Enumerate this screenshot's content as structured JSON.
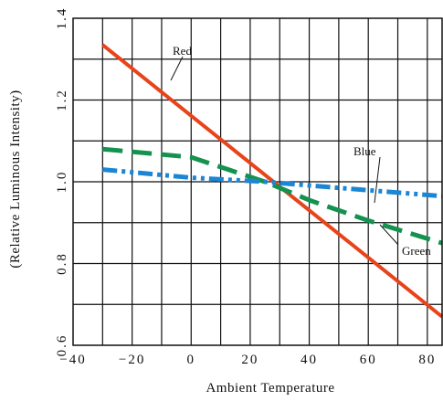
{
  "chart_data": {
    "type": "line",
    "title": "",
    "xlabel": "Ambient Temperature",
    "ylabel": "(Relative Luminous Intensity)",
    "xlim": [
      -40,
      85
    ],
    "ylim": [
      0.6,
      1.4
    ],
    "x_ticks": [
      "−40",
      "−20",
      "0",
      "20",
      "40",
      "60",
      "80"
    ],
    "y_ticks": [
      "0.6",
      "0.8",
      "1.0",
      "1.2",
      "1.4"
    ],
    "grid": true,
    "legend": "none (series labeled directly on plot)",
    "series": [
      {
        "name": "Red",
        "color": "#e8431b",
        "style": "solid",
        "x": [
          -30,
          85
        ],
        "y": [
          1.335,
          0.67
        ]
      },
      {
        "name": "Green",
        "color": "#15924f",
        "style": "dashed",
        "x": [
          -30,
          0,
          25,
          40,
          60,
          85
        ],
        "y": [
          1.08,
          1.06,
          1.0,
          0.955,
          0.905,
          0.85
        ]
      },
      {
        "name": "Blue",
        "color": "#1b86d4",
        "style": "dash-dot-dot",
        "x": [
          -30,
          0,
          25,
          50,
          85
        ],
        "y": [
          1.03,
          1.01,
          1.0,
          0.985,
          0.965
        ]
      }
    ]
  }
}
